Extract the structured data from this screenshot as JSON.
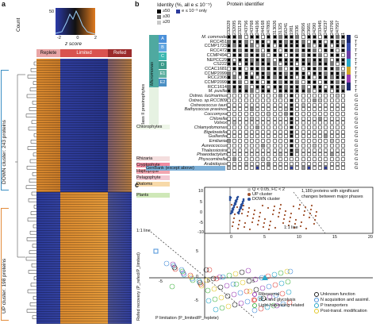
{
  "panel_a": {
    "label": "a",
    "colorbar": {
      "ylabel": "Count",
      "xlabel": "z score",
      "ticks": [
        "-2",
        "0",
        "2"
      ],
      "count_tick": "50"
    },
    "conditions": [
      "Replete",
      "Limited",
      "Refed"
    ],
    "clusters": [
      {
        "label": "DOWN cluster: 243 proteins",
        "color": "#3b8fc4"
      },
      {
        "label": "UP cluster: 198 proteins",
        "color": "#e38b3a"
      }
    ]
  },
  "panel_b": {
    "label": "b",
    "legend_title": "Identity (%, all e ≤ 10⁻⁵)",
    "legend_items": [
      "≥50",
      "≥30",
      "≥20"
    ],
    "legend_extra": "e ≤ 10⁻³ only",
    "column_header": "Protein identifier",
    "ids": [
      "232029",
      "232095",
      "232129",
      "243756",
      "243768",
      "244106",
      "244168",
      "247805",
      "313026",
      "31325",
      "58241",
      "1981",
      "2336",
      "23656",
      "23681",
      "24290",
      "233445",
      "243237",
      "243766",
      "247957",
      "1"
    ],
    "group_labels": [
      "Class II prasinophytes",
      "Micromonas",
      "Ostreo."
    ],
    "clade_labels": [
      "A",
      "B",
      "C",
      "D",
      "E1",
      "E2"
    ],
    "organisms": [
      "M. commoda",
      "RCC451",
      "CCMP1723",
      "RCC472",
      "CCMP494",
      "NEPCC29",
      "CS222",
      "CCAC1681",
      "CCMP2099",
      "RCC2306",
      "CCMP2099",
      "RCC1614",
      "M. pusilla",
      "Ostreo. lucimarinus",
      "Ostreo. sp.RCC809",
      "Ostreococcus tauri",
      "Bathycoccus prasinos",
      "Coccomyxa",
      "Chlorella",
      "Volvox",
      "Chlamydomonas",
      "Bigelowiella",
      "Guillardia",
      "Emiliania",
      "Aureococcus",
      "Thalassiosira",
      "Phaeodactylum",
      "Physcomitrella",
      "Arabidopsis",
      "GenBank (except above)"
    ],
    "lineages": [
      "Chlorophytes",
      "Rhizaria",
      "Cryptophyte",
      "Haptophyte",
      "Pelagophyte",
      "Diatoms",
      "Plants"
    ],
    "right_letters": [
      "G",
      "T",
      "T",
      "T",
      "T",
      "T",
      "T",
      "T",
      "T",
      "T",
      "T",
      "T",
      "T",
      "G",
      "G",
      "G",
      "G",
      "G",
      "G",
      "G",
      "G",
      "G",
      "G",
      "G",
      "G",
      "G",
      "G",
      "G",
      "G",
      "G"
    ]
  },
  "panel_c": {
    "label": "c",
    "legend": [
      "Q < 0.05, FC < 2",
      "UP cluster",
      "DOWN cluster"
    ],
    "note": "1,180 proteins with significant changes between major phases",
    "line_label": "1:1 line",
    "inset_line_label": "1:1 line",
    "ylabel": "Refed recovery (P_refed/P_limited)",
    "xlabel": "P limitation (P_limited/P_replete)",
    "ticks_y": [
      "10",
      "5",
      "0",
      "-5",
      "-10"
    ],
    "ticks_x": [
      "-5",
      "0",
      "5"
    ],
    "inset_ticks_y": [
      "10",
      "5",
      "0",
      "-5",
      "-10"
    ],
    "inset_ticks_x": [
      "0",
      "5",
      "10",
      "15",
      "20"
    ],
    "categories": [
      {
        "name": "Unknown function",
        "color": "#222222"
      },
      {
        "name": "Ribosomal",
        "color": "#9b3fb5"
      },
      {
        "name": "N acquisition and assimil.",
        "color": "#4a90d9"
      },
      {
        "name": "TCA and glycolysis",
        "color": "#e0504a"
      },
      {
        "name": "P transporters",
        "color": "#2aa8c9"
      },
      {
        "name": "Light-harvesting related",
        "color": "#4cb84c"
      },
      {
        "name": "Post-transl. modification",
        "color": "#e2c82a"
      }
    ]
  }
}
